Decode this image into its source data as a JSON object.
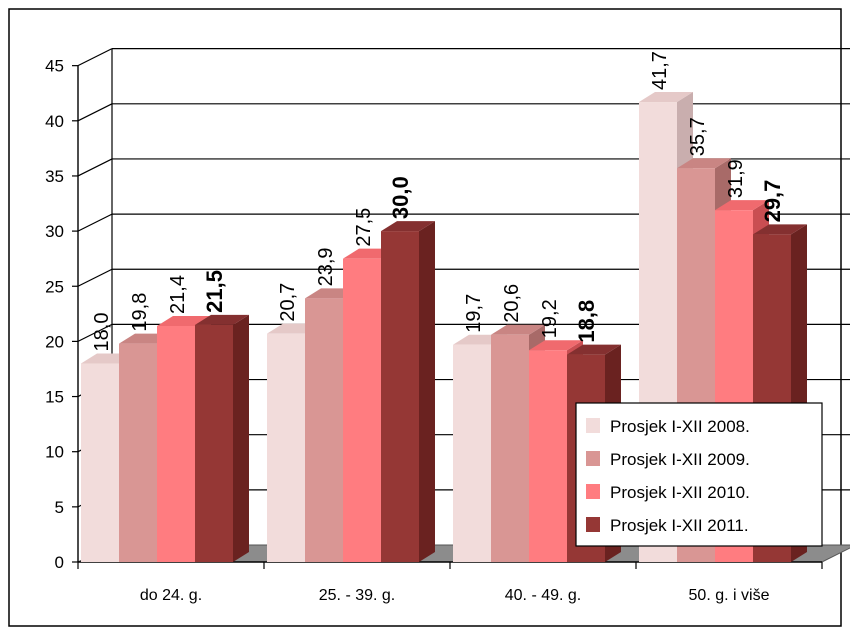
{
  "chart_data": {
    "type": "bar",
    "categories": [
      "do 24. g.",
      "25. - 39. g.",
      "40. - 49. g.",
      "50. g. i više"
    ],
    "series": [
      {
        "name": "Prosjek I-XII  2008.",
        "values": [
          18.0,
          20.7,
          19.7,
          41.7
        ],
        "labels": [
          "18,0",
          "20,7",
          "19,7",
          "41,7"
        ],
        "color": "#f2dcdb",
        "side": "#c9aeae",
        "top": "#e5c9c8"
      },
      {
        "name": "Prosjek I-XII  2009.",
        "values": [
          19.8,
          23.9,
          20.6,
          35.7
        ],
        "labels": [
          "19,8",
          "23,9",
          "20,6",
          "35,7"
        ],
        "color": "#d99694",
        "side": "#a86a68",
        "top": "#c98583"
      },
      {
        "name": "Prosjek I-XII  2010.",
        "values": [
          21.4,
          27.5,
          19.2,
          31.9
        ],
        "labels": [
          "21,4",
          "27,5",
          "19,2",
          "31,9"
        ],
        "color": "#ff7c80",
        "side": "#c94e52",
        "top": "#f06a6e"
      },
      {
        "name": "Prosjek I-XII  2011.",
        "values": [
          21.5,
          30.0,
          18.8,
          29.7
        ],
        "labels": [
          "21,5",
          "30,0",
          "18,8",
          "29,7"
        ],
        "color": "#953735",
        "side": "#6a2220",
        "top": "#843030",
        "bold_labels": true
      }
    ],
    "y_ticks": [
      "0",
      "5",
      "10",
      "15",
      "20",
      "25",
      "30",
      "35",
      "40",
      "45"
    ],
    "ylim": [
      0,
      45
    ],
    "grid": true,
    "legend_position": "bottom-right"
  }
}
